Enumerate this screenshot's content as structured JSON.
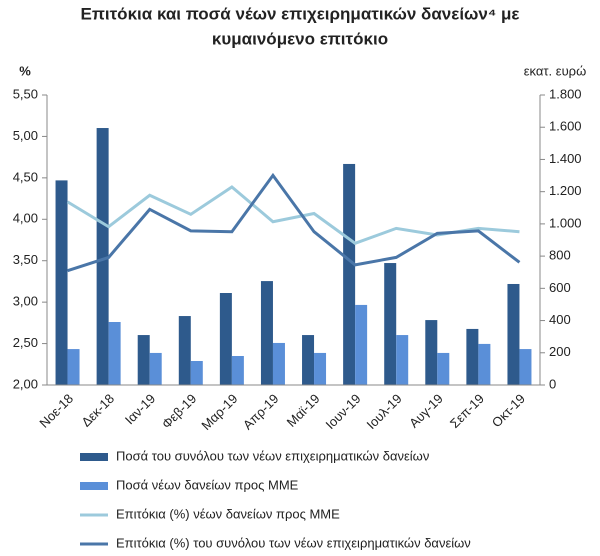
{
  "chart_data": {
    "type": "bar-line",
    "title": [
      "Επιτόκια και ποσά νέων επιχειρηματικών δανείων⁴ με",
      "κυμαινόμενο επιτόκιο"
    ],
    "y_label": "%",
    "y2_label": "εκατ. ευρώ",
    "categories": [
      "Νοε-18",
      "Δεκ-18",
      "Ιαν-19",
      "Φεβ-19",
      "Μαρ-19",
      "Απρ-19",
      "Μαϊ-19",
      "Ιουν-19",
      "Ιουλ-19",
      "Αυγ-19",
      "Σεπ-19",
      "Οκτ-19"
    ],
    "series": [
      {
        "name": "Ποσά του συνόλου των νέων επιχειρηματικών δανείων",
        "kind": "bar",
        "axis": "y2",
        "color": "#2e5a8c",
        "values": [
          1270,
          1595,
          310,
          428,
          571,
          645,
          310,
          1372,
          757,
          403,
          348,
          627
        ]
      },
      {
        "name": "Ποσά νέων δανείων προς ΜΜΕ",
        "kind": "bar",
        "axis": "y2",
        "color": "#5a8fd8",
        "values": [
          223,
          391,
          199,
          149,
          180,
          261,
          199,
          497,
          310,
          199,
          255,
          223
        ]
      },
      {
        "name": "Επιτόκια (%) νέων δανείων προς ΜΜΕ",
        "kind": "line",
        "axis": "y",
        "color": "#9ccadc",
        "values": [
          4.21,
          3.91,
          4.29,
          4.06,
          4.39,
          3.97,
          4.07,
          3.71,
          3.89,
          3.81,
          3.89,
          3.85
        ]
      },
      {
        "name": "Επιτόκια (%) του συνόλου των νέων επιχειρηματικών δανείων",
        "kind": "line",
        "axis": "y",
        "color": "#4a76a8",
        "values": [
          3.38,
          3.54,
          4.12,
          3.86,
          3.85,
          4.53,
          3.85,
          3.45,
          3.54,
          3.83,
          3.86,
          3.48
        ]
      }
    ],
    "ylim": [
      2,
      5.5
    ],
    "yticks": [
      {
        "value": 2,
        "label": "2,00"
      },
      {
        "value": 2.5,
        "label": "2,50"
      },
      {
        "value": 3,
        "label": "3,00"
      },
      {
        "value": 3.5,
        "label": "3,50"
      },
      {
        "value": 4,
        "label": "4,00"
      },
      {
        "value": 4.5,
        "label": "4,50"
      },
      {
        "value": 5,
        "label": "5,00"
      },
      {
        "value": 5.5,
        "label": "5,50"
      }
    ],
    "y2lim": [
      0,
      1800
    ],
    "y2ticks": [
      0,
      200,
      400,
      600,
      800,
      {
        "value": 1000,
        "label": "1.000"
      },
      {
        "value": 1200,
        "label": "1.200"
      },
      {
        "value": 1400,
        "label": "1.400"
      },
      {
        "value": 1600,
        "label": "1.600"
      },
      {
        "value": 1800,
        "label": "1.800"
      }
    ],
    "grid": false,
    "legend": "bottom"
  }
}
